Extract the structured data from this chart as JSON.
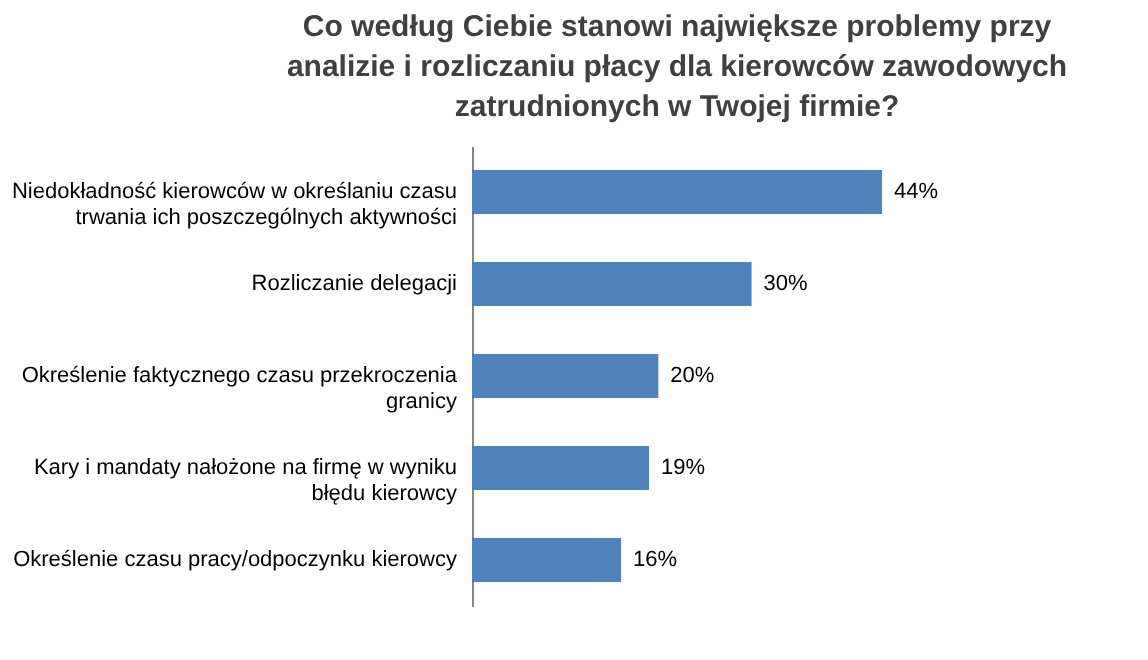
{
  "chart_data": {
    "type": "bar",
    "orientation": "horizontal",
    "title": "Co według Ciebie stanowi największe problemy przy analizie i rozliczaniu płacy dla kierowców zawodowych zatrudnionych w Twojej firmie?",
    "categories": [
      "Niedokładność kierowców w określaniu czasu trwania ich poszczególnych aktywności",
      "Rozliczanie delegacji",
      "Określenie faktycznego czasu przekroczenia granicy",
      "Kary i mandaty nałożone na firmę w wyniku błędu kierowcy",
      "Określenie czasu pracy/odpoczynku kierowcy"
    ],
    "values": [
      44,
      30,
      20,
      19,
      16
    ],
    "value_labels": [
      "44%",
      "30%",
      "20%",
      "19%",
      "16%"
    ],
    "color": "#4f81bd",
    "grid": false
  }
}
